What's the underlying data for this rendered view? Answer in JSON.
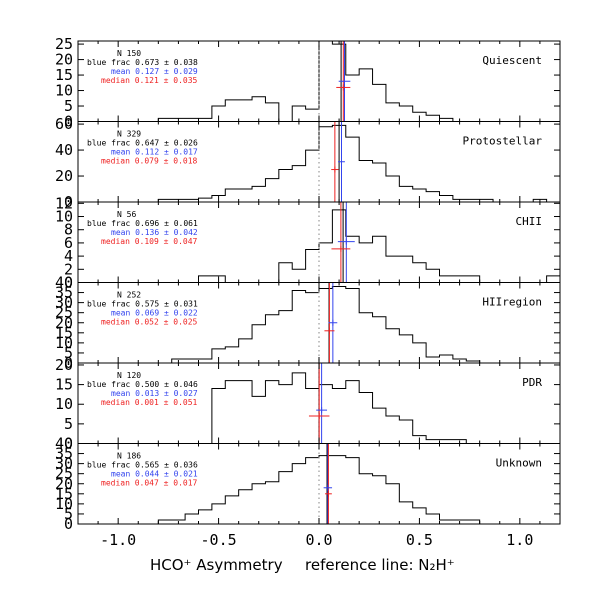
{
  "chart_data": {
    "type": "histogram-panels",
    "x_range": [
      -1.2,
      1.2
    ],
    "x_ticks": [
      -1.0,
      -0.5,
      0.0,
      0.5,
      1.0
    ],
    "x_tick_labels": [
      "-1.0",
      "-0.5",
      "0.0",
      "0.5",
      "1.0"
    ],
    "bin_width": 0.0667,
    "xlabel_left": "HCO⁺ Asymmetry",
    "xlabel_right": "reference line: N₂H⁺",
    "colors": {
      "hist": "#000000",
      "mean": "#3344ee",
      "median": "#ee2222",
      "reference": "#999999",
      "text": "#000000"
    },
    "panels": [
      {
        "name": "Quiescent",
        "ylim": [
          0,
          26
        ],
        "yticks": [
          0,
          5,
          10,
          15,
          20,
          25
        ],
        "counts": [
          0,
          0,
          0,
          0,
          0,
          0,
          1,
          1,
          1,
          1,
          5,
          7,
          7,
          8,
          6,
          0,
          5,
          4,
          26,
          25,
          15,
          17,
          12,
          6,
          5,
          3,
          2,
          1,
          0,
          0,
          0,
          0,
          0,
          0,
          0,
          0
        ],
        "n": "150",
        "blue_frac": "0.673",
        "blue_frac_err": "0.038",
        "mean": "0.127",
        "mean_err": "0.029",
        "median": "0.121",
        "median_err": "0.035",
        "mean_value": 0.127,
        "mean_err_value": 0.029,
        "median_value": 0.121,
        "median_err_value": 0.035,
        "ref_line": 0.11,
        "mean_bar_y": 13,
        "median_bar_y": 11
      },
      {
        "name": "Protostellar",
        "ylim": [
          0,
          62
        ],
        "yticks": [
          0,
          20,
          40,
          60
        ],
        "counts": [
          0,
          0,
          0,
          0,
          0,
          0,
          2,
          2,
          2,
          3,
          5,
          10,
          10,
          12,
          18,
          25,
          28,
          40,
          58,
          59,
          50,
          32,
          30,
          20,
          12,
          10,
          8,
          5,
          2,
          2,
          2,
          0,
          0,
          0,
          2,
          0
        ],
        "n": "329",
        "blue_frac": "0.647",
        "blue_frac_err": "0.026",
        "mean": "0.112",
        "mean_err": "0.017",
        "median": "0.079",
        "median_err": "0.018",
        "mean_value": 0.112,
        "mean_err_value": 0.017,
        "median_value": 0.079,
        "median_err_value": 0.018,
        "ref_line": 0.1,
        "mean_bar_y": 31,
        "median_bar_y": 25
      },
      {
        "name": "CHII",
        "ylim": [
          0,
          12.2
        ],
        "yticks": [
          0,
          2,
          4,
          6,
          8,
          10,
          12
        ],
        "counts": [
          0,
          0,
          0,
          0,
          0,
          0,
          0,
          0,
          0,
          1,
          1,
          0,
          0,
          0,
          0,
          3,
          2,
          5,
          6,
          11,
          7,
          6,
          7,
          4,
          4,
          3,
          2,
          1,
          1,
          1,
          0,
          0,
          0,
          0,
          0,
          1
        ],
        "n": "56",
        "blue_frac": "0.696",
        "blue_frac_err": "0.061",
        "mean": "0.136",
        "mean_err": "0.042",
        "median": "0.109",
        "median_err": "0.047",
        "mean_value": 0.136,
        "mean_err_value": 0.042,
        "median_value": 0.109,
        "median_err_value": 0.047,
        "ref_line": 0.12,
        "mean_bar_y": 6.2,
        "median_bar_y": 5.1
      },
      {
        "name": "HIIregion",
        "ylim": [
          0,
          40
        ],
        "yticks": [
          0,
          5,
          10,
          15,
          20,
          25,
          30,
          35,
          40
        ],
        "counts": [
          0,
          0,
          0,
          0,
          0,
          0,
          0,
          2,
          2,
          2,
          7,
          8,
          12,
          19,
          24,
          26,
          36,
          35,
          37,
          38,
          37,
          25,
          23,
          17,
          14,
          10,
          3,
          4,
          2,
          1,
          0,
          0,
          0,
          0,
          0,
          0
        ],
        "n": "252",
        "blue_frac": "0.575",
        "blue_frac_err": "0.031",
        "mean": "0.069",
        "mean_err": "0.022",
        "median": "0.052",
        "median_err": "0.025",
        "mean_value": 0.069,
        "mean_err_value": 0.022,
        "median_value": 0.052,
        "median_err_value": 0.025,
        "ref_line": 0.05,
        "mean_bar_y": 20,
        "median_bar_y": 16
      },
      {
        "name": "PDR",
        "ylim": [
          0,
          20.5
        ],
        "yticks": [
          0,
          5,
          10,
          15,
          20
        ],
        "counts": [
          0,
          0,
          0,
          0,
          0,
          0,
          0,
          0,
          0,
          0,
          14,
          16,
          16,
          12,
          16,
          15,
          18,
          14,
          15,
          14,
          16,
          13,
          9,
          7,
          6,
          2,
          1,
          1,
          1,
          0,
          0,
          0,
          0,
          0,
          0,
          0
        ],
        "n": "120",
        "blue_frac": "0.500",
        "blue_frac_err": "0.046",
        "mean": "0.013",
        "mean_err": "0.027",
        "median": "0.001",
        "median_err": "0.051",
        "mean_value": 0.013,
        "mean_err_value": 0.027,
        "median_value": 0.001,
        "median_err_value": 0.051,
        "ref_line": 0.0,
        "mean_bar_y": 8.5,
        "median_bar_y": 7
      },
      {
        "name": "Unknown",
        "ylim": [
          0,
          40
        ],
        "yticks": [
          0,
          5,
          10,
          15,
          20,
          25,
          30,
          35,
          40
        ],
        "counts": [
          0,
          0,
          0,
          0,
          0,
          0,
          2,
          2,
          5,
          7,
          10,
          14,
          17,
          20,
          21,
          26,
          30,
          33,
          34,
          34,
          33,
          25,
          24,
          20,
          11,
          8,
          5,
          2,
          2,
          2,
          0,
          0,
          0,
          0,
          0,
          0
        ],
        "n": "186",
        "blue_frac": "0.565",
        "blue_frac_err": "0.036",
        "mean": "0.044",
        "mean_err": "0.021",
        "median": "0.047",
        "median_err": "0.017",
        "mean_value": 0.044,
        "mean_err_value": 0.021,
        "median_value": 0.047,
        "median_err_value": 0.017,
        "ref_line": 0.04,
        "mean_bar_y": 18,
        "median_bar_y": 15
      }
    ]
  }
}
